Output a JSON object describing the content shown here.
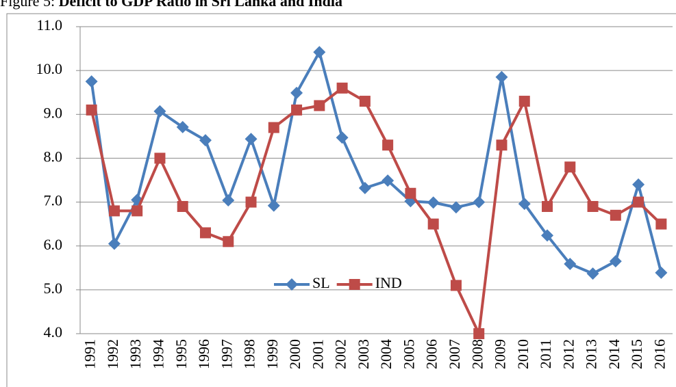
{
  "chart_data": {
    "type": "line",
    "title_prefix": "Figure 5:",
    "title": "Deficit to GDP Ratio in Sri Lanka and India",
    "categories": [
      "1991",
      "1992",
      "1993",
      "1994",
      "1995",
      "1996",
      "1997",
      "1998",
      "1999",
      "2000",
      "2001",
      "2002",
      "2003",
      "2004",
      "2005",
      "2006",
      "2007",
      "2008",
      "2009",
      "2010",
      "2011",
      "2012",
      "2013",
      "2014",
      "2015",
      "2016"
    ],
    "series": [
      {
        "name": "SL",
        "color": "#4a7ebb",
        "marker": "diamond",
        "values": [
          9.75,
          6.05,
          7.05,
          9.07,
          8.71,
          8.41,
          7.04,
          8.44,
          6.92,
          9.49,
          10.42,
          8.47,
          7.32,
          7.49,
          7.02,
          6.99,
          6.88,
          7.0,
          9.85,
          6.96,
          6.24,
          5.59,
          5.37,
          5.65,
          7.4,
          5.39
        ]
      },
      {
        "name": "IND",
        "color": "#be4b48",
        "marker": "square",
        "values": [
          9.1,
          6.8,
          6.8,
          8.0,
          6.9,
          6.3,
          6.1,
          7.0,
          8.7,
          9.1,
          9.2,
          9.6,
          9.3,
          8.3,
          7.2,
          6.5,
          5.1,
          4.0,
          8.3,
          9.3,
          6.9,
          7.8,
          6.9,
          6.7,
          7.0,
          6.5
        ]
      }
    ],
    "ylim": [
      4,
      11
    ],
    "yticks": [
      {
        "value": 4,
        "label": "4.0"
      },
      {
        "value": 5,
        "label": "5.0"
      },
      {
        "value": 6,
        "label": "6.0"
      },
      {
        "value": 7,
        "label": "7.0"
      },
      {
        "value": 8,
        "label": "8.0"
      },
      {
        "value": 9,
        "label": "9.0"
      },
      {
        "value": 10,
        "label": "10.0"
      },
      {
        "value": 11,
        "label": "11.0"
      }
    ],
    "grid": true
  }
}
